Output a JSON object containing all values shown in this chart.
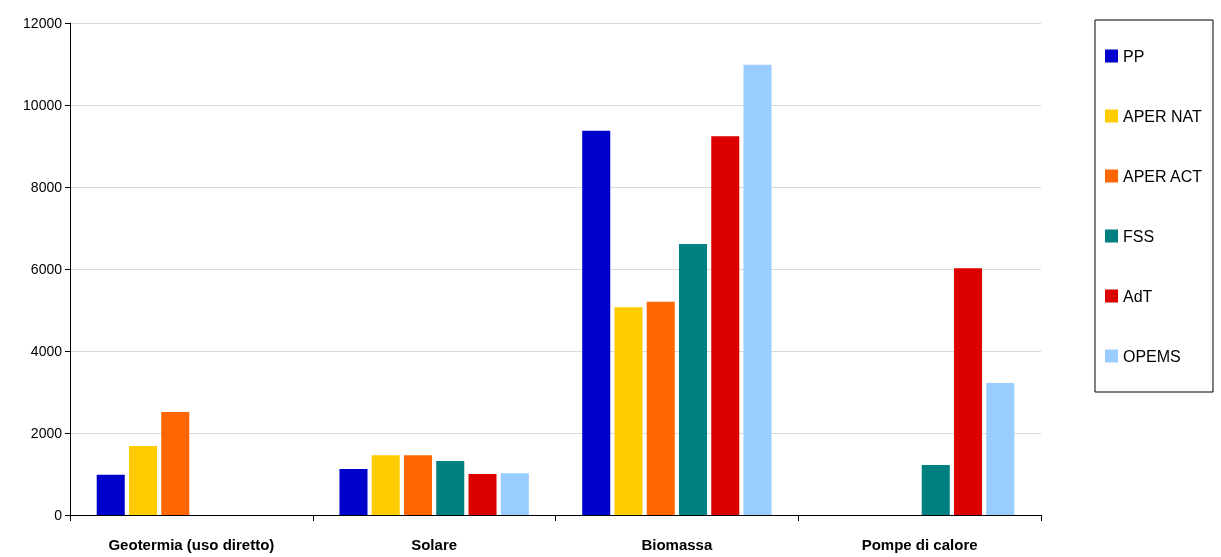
{
  "chart_data": {
    "type": "bar",
    "categories": [
      "Geotermia (uso diretto)",
      "Solare",
      "Biomassa",
      "Pompe di calore"
    ],
    "series": [
      {
        "name": "PP",
        "color": "#0000cc",
        "values": [
          980,
          1120,
          9370,
          null
        ]
      },
      {
        "name": "APER NAT",
        "color": "#ffcc00",
        "values": [
          1680,
          1460,
          5070,
          null
        ]
      },
      {
        "name": "APER ACT",
        "color": "#ff6600",
        "values": [
          2510,
          1460,
          5200,
          null
        ]
      },
      {
        "name": "FSS",
        "color": "#008080",
        "values": [
          null,
          1320,
          6610,
          1220
        ]
      },
      {
        "name": "AdT",
        "color": "#dd0000",
        "values": [
          null,
          1000,
          9240,
          6020
        ]
      },
      {
        "name": "OPEMS",
        "color": "#99ccff",
        "values": [
          null,
          1020,
          10980,
          3220
        ]
      }
    ],
    "ylim": [
      0,
      12000
    ],
    "yticks": [
      0,
      2000,
      4000,
      6000,
      8000,
      10000,
      12000
    ],
    "grid": "y",
    "legend": "right"
  }
}
